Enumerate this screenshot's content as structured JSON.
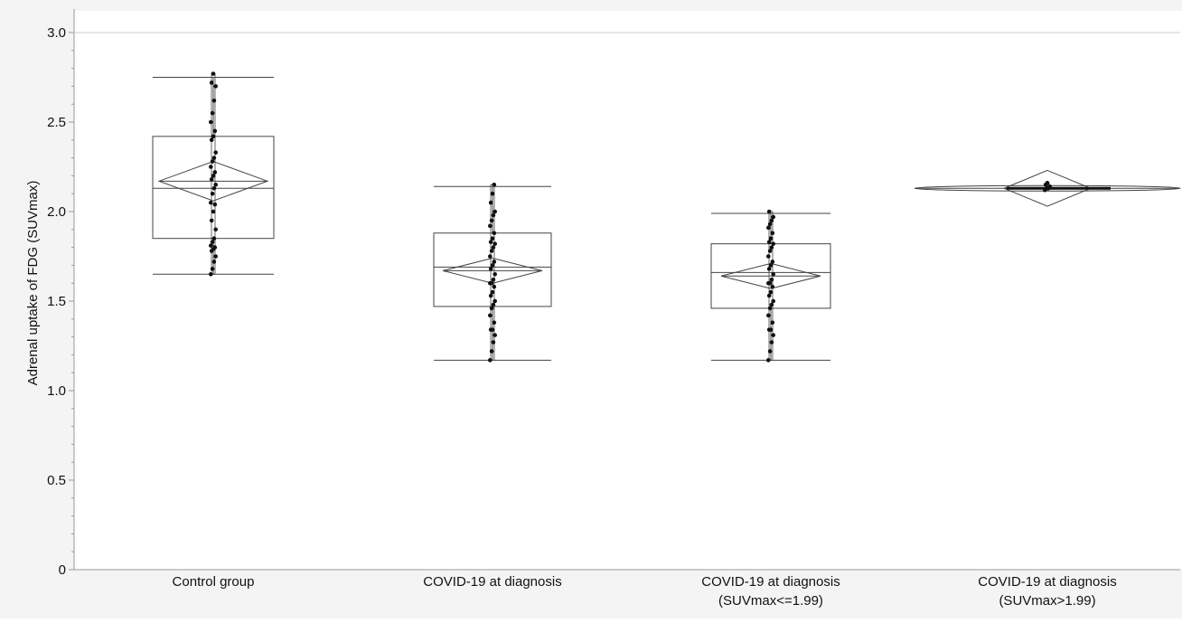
{
  "chart_data": {
    "type": "box",
    "ylabel": "Adrenal uptake of FDG (SUVmax)",
    "ylim": [
      0,
      3.0
    ],
    "yticks": [
      "0",
      "0.5",
      "1.0",
      "1.5",
      "2.0",
      "2.5",
      "3.0"
    ],
    "grid": false,
    "colors": {
      "plot_bg": "#ffffff",
      "outer_bg": "#f4f4f4",
      "line": "#444444",
      "point": "#111111",
      "axis": "#999999"
    },
    "categories": [
      [
        "Control group"
      ],
      [
        "COVID-19 at diagnosis"
      ],
      [
        "COVID-19 at diagnosis",
        "(SUVmax<=1.99)"
      ],
      [
        "COVID-19 at diagnosis",
        "(SUVmax>1.99)"
      ]
    ],
    "groups": [
      {
        "whisker_low": 1.65,
        "q1": 1.85,
        "median": 2.13,
        "q3": 2.42,
        "whisker_high": 2.75,
        "mean": 2.17,
        "ci_low": 2.06,
        "ci_high": 2.28,
        "points": [
          1.65,
          1.68,
          1.72,
          1.75,
          1.78,
          1.79,
          1.8,
          1.81,
          1.83,
          1.85,
          1.9,
          1.95,
          2.0,
          2.04,
          2.05,
          2.1,
          2.13,
          2.15,
          2.18,
          2.2,
          2.22,
          2.25,
          2.28,
          2.3,
          2.33,
          2.4,
          2.42,
          2.45,
          2.5,
          2.55,
          2.62,
          2.7,
          2.72,
          2.77
        ]
      },
      {
        "whisker_low": 1.17,
        "q1": 1.47,
        "median": 1.69,
        "q3": 1.88,
        "whisker_high": 2.14,
        "mean": 1.67,
        "ci_low": 1.6,
        "ci_high": 1.74,
        "points": [
          1.17,
          1.22,
          1.27,
          1.31,
          1.34,
          1.34,
          1.38,
          1.42,
          1.46,
          1.48,
          1.5,
          1.53,
          1.55,
          1.58,
          1.6,
          1.6,
          1.62,
          1.65,
          1.68,
          1.7,
          1.72,
          1.75,
          1.78,
          1.8,
          1.82,
          1.83,
          1.85,
          1.88,
          1.92,
          1.95,
          1.98,
          2.0,
          2.05,
          2.1,
          2.15
        ]
      },
      {
        "whisker_low": 1.17,
        "q1": 1.46,
        "median": 1.66,
        "q3": 1.82,
        "whisker_high": 1.99,
        "mean": 1.64,
        "ci_low": 1.57,
        "ci_high": 1.71,
        "points": [
          1.17,
          1.22,
          1.27,
          1.31,
          1.34,
          1.34,
          1.38,
          1.42,
          1.46,
          1.48,
          1.5,
          1.53,
          1.55,
          1.58,
          1.6,
          1.6,
          1.62,
          1.65,
          1.68,
          1.7,
          1.72,
          1.75,
          1.78,
          1.8,
          1.82,
          1.83,
          1.85,
          1.88,
          1.91,
          1.93,
          1.95,
          1.97,
          2.0
        ]
      },
      {
        "whisker_low": 2.13,
        "q1": 2.13,
        "median": 2.13,
        "q3": 2.13,
        "whisker_high": 2.13,
        "mean": 2.13,
        "ci_low": 2.03,
        "ci_high": 2.23,
        "points": [
          2.12,
          2.13,
          2.13,
          2.14,
          2.15,
          2.16
        ]
      }
    ]
  }
}
